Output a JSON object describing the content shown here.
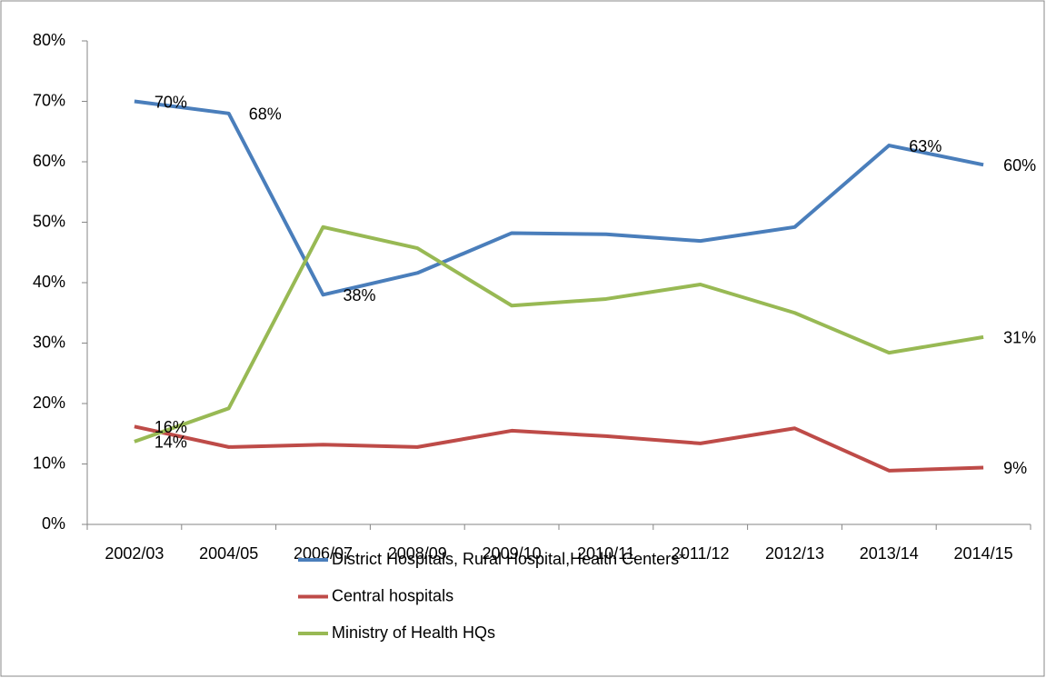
{
  "chart_data": {
    "type": "line",
    "categories": [
      "2002/03",
      "2004/05",
      "2006/07",
      "2008/09",
      "2009/10",
      "2010/11",
      "2011/12",
      "2012/13",
      "2013/14",
      "2014/15"
    ],
    "series": [
      {
        "name": "District Hospitals, Rural Hospital,Health Centers*",
        "color": "#4a7ebb",
        "values": [
          70,
          68,
          38,
          41.6,
          48.2,
          48,
          46.9,
          49.2,
          62.7,
          59.5
        ],
        "value_labels": [
          "70%",
          "68%",
          "38%",
          null,
          null,
          null,
          null,
          null,
          "63%",
          "60%"
        ]
      },
      {
        "name": "Central hospitals",
        "color": "#be4b48",
        "values": [
          16.2,
          12.8,
          13.2,
          12.8,
          15.5,
          14.6,
          13.4,
          15.9,
          8.9,
          9.4
        ],
        "value_labels": [
          "16%",
          null,
          null,
          null,
          null,
          null,
          null,
          null,
          null,
          "9%"
        ]
      },
      {
        "name": "Ministry of Health HQs",
        "color": "#98b954",
        "values": [
          13.7,
          19.2,
          49.2,
          45.7,
          36.2,
          37.3,
          39.7,
          35,
          28.4,
          31
        ],
        "value_labels": [
          "14%",
          null,
          null,
          null,
          null,
          null,
          null,
          null,
          null,
          "31%"
        ]
      }
    ],
    "ylim": [
      0,
      80
    ],
    "yticks": [
      {
        "value": 0,
        "label": "0%"
      },
      {
        "value": 10,
        "label": "10%"
      },
      {
        "value": 20,
        "label": "20%"
      },
      {
        "value": 30,
        "label": "30%"
      },
      {
        "value": 40,
        "label": "40%"
      },
      {
        "value": 50,
        "label": "50%"
      },
      {
        "value": 60,
        "label": "60%"
      },
      {
        "value": 70,
        "label": "70%"
      },
      {
        "value": 80,
        "label": "80%"
      }
    ],
    "legend": "bottom"
  }
}
